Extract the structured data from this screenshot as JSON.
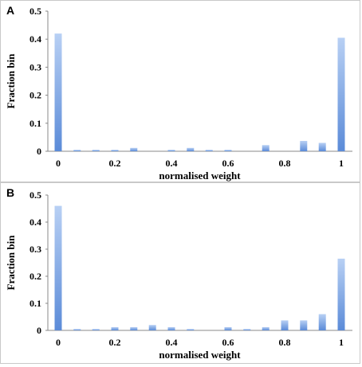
{
  "colors": {
    "bar_light": "#b8d0f4",
    "bar_dark": "#5b8bd8",
    "axis": "#888888",
    "frame": "#c9c9c9"
  },
  "chart_data": [
    {
      "panel": "A",
      "type": "bar",
      "xlabel": "normalised weight",
      "ylabel": "Fraction bin",
      "xlim": [
        0,
        1
      ],
      "ylim": [
        0,
        0.5
      ],
      "xticks": [
        0,
        0.2,
        0.4,
        0.6,
        0.8,
        1
      ],
      "xtick_labels": [
        "0",
        "0.2",
        "0.4",
        "0.6",
        "0.8",
        "1"
      ],
      "yticks": [
        0,
        0.1,
        0.2,
        0.3,
        0.4,
        0.5
      ],
      "ytick_labels": [
        "0",
        "0.1",
        "0.2",
        "0.3",
        "0.4",
        "0.5"
      ],
      "x": [
        0,
        0.067,
        0.133,
        0.2,
        0.267,
        0.333,
        0.4,
        0.467,
        0.533,
        0.6,
        0.667,
        0.733,
        0.8,
        0.867,
        0.933,
        1
      ],
      "values": [
        0.42,
        0.005,
        0.005,
        0.005,
        0.012,
        0,
        0.005,
        0.012,
        0.005,
        0.005,
        0,
        0.022,
        0,
        0.037,
        0.03,
        0.405
      ],
      "grid": false
    },
    {
      "panel": "B",
      "type": "bar",
      "xlabel": "normalised weight",
      "ylabel": "Fraction bin",
      "xlim": [
        0,
        1
      ],
      "ylim": [
        0,
        0.5
      ],
      "xticks": [
        0,
        0.2,
        0.4,
        0.6,
        0.8,
        1
      ],
      "xtick_labels": [
        "0",
        "0.2",
        "0.4",
        "0.6",
        "0.8",
        "1"
      ],
      "yticks": [
        0,
        0.1,
        0.2,
        0.3,
        0.4,
        0.5
      ],
      "ytick_labels": [
        "0",
        "0.1",
        "0.2",
        "0.3",
        "0.4",
        "0.5"
      ],
      "x": [
        0,
        0.067,
        0.133,
        0.2,
        0.267,
        0.333,
        0.4,
        0.467,
        0.533,
        0.6,
        0.667,
        0.733,
        0.8,
        0.867,
        0.933,
        1
      ],
      "values": [
        0.46,
        0.005,
        0.005,
        0.012,
        0.012,
        0.02,
        0.012,
        0.005,
        0,
        0.012,
        0.005,
        0.012,
        0.037,
        0.037,
        0.06,
        0.265
      ],
      "grid": false
    }
  ]
}
